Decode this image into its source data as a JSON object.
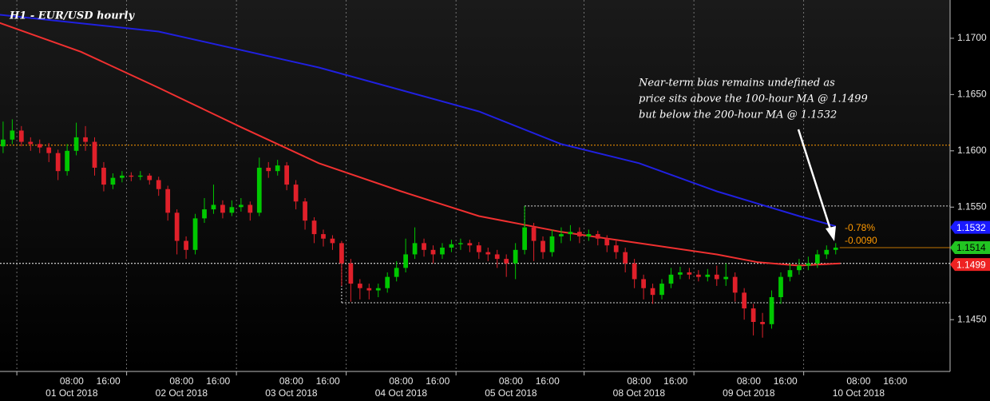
{
  "chart_data": {
    "type": "candlestick",
    "title": "H1 - EUR/USD hourly",
    "up_color": "#00c800",
    "down_color": "#e0202a",
    "x": [
      -7,
      -5,
      -3,
      -1,
      1,
      3,
      5,
      7,
      9,
      11,
      13,
      15,
      17,
      19,
      21,
      23,
      25,
      27,
      29,
      31,
      33,
      35,
      37,
      39,
      41,
      43,
      45,
      47,
      49,
      51,
      53,
      55,
      57,
      59,
      61,
      63,
      65,
      67,
      69,
      71,
      73,
      75,
      77,
      79,
      81,
      83,
      85,
      87,
      89,
      91,
      93,
      95,
      97,
      99,
      101,
      103,
      105,
      107,
      109,
      111,
      113,
      115,
      117,
      119,
      121,
      123,
      125,
      127,
      129,
      131,
      133,
      135,
      137,
      139,
      141,
      143,
      145,
      147,
      149,
      151,
      153,
      155,
      157,
      159,
      161,
      163,
      165,
      167,
      169,
      171,
      173,
      175
    ],
    "open": [
      1.1604,
      1.161,
      1.1618,
      1.1608,
      1.1606,
      1.1603,
      1.1598,
      1.1582,
      1.16,
      1.1612,
      1.1608,
      1.1585,
      1.157,
      1.1576,
      1.1578,
      1.1577,
      1.1578,
      1.1574,
      1.1566,
      1.1545,
      1.152,
      1.1512,
      1.154,
      1.1548,
      1.1552,
      1.1545,
      1.155,
      1.1552,
      1.1545,
      1.1585,
      1.1582,
      1.1587,
      1.157,
      1.1555,
      1.1538,
      1.1526,
      1.1522,
      1.1518,
      1.15,
      1.1482,
      1.1478,
      1.1476,
      1.1478,
      1.1488,
      1.1496,
      1.1508,
      1.1518,
      1.1512,
      1.1508,
      1.1514,
      1.1517,
      1.1518,
      1.1516,
      1.151,
      1.1508,
      1.1504,
      1.15,
      1.1512,
      1.1532,
      1.152,
      1.151,
      1.1524,
      1.1526,
      1.1528,
      1.1524,
      1.1526,
      1.1522,
      1.1516,
      1.151,
      1.15,
      1.1486,
      1.1478,
      1.1472,
      1.1482,
      1.149,
      1.1492,
      1.149,
      1.1488,
      1.149,
      1.1486,
      1.1488,
      1.1474,
      1.146,
      1.1448,
      1.1446,
      1.147,
      1.1488,
      1.1494,
      1.1498,
      1.15,
      1.1508,
      1.1512
    ],
    "high": [
      1.1626,
      1.1628,
      1.1622,
      1.1612,
      1.161,
      1.1607,
      1.1601,
      1.1606,
      1.1625,
      1.1622,
      1.1612,
      1.159,
      1.158,
      1.1582,
      1.1581,
      1.1582,
      1.158,
      1.1577,
      1.1569,
      1.1548,
      1.1524,
      1.1544,
      1.1558,
      1.157,
      1.1556,
      1.1556,
      1.1558,
      1.1555,
      1.1594,
      1.159,
      1.1592,
      1.159,
      1.1574,
      1.1558,
      1.1541,
      1.153,
      1.1525,
      1.152,
      1.1504,
      1.1486,
      1.1482,
      1.1482,
      1.1492,
      1.1502,
      1.1522,
      1.1532,
      1.1522,
      1.1516,
      1.1518,
      1.1521,
      1.1522,
      1.1521,
      1.1519,
      1.1514,
      1.1512,
      1.1508,
      1.1518,
      1.1551,
      1.1536,
      1.1524,
      1.153,
      1.1532,
      1.1534,
      1.1532,
      1.153,
      1.1529,
      1.1525,
      1.152,
      1.1514,
      1.1504,
      1.149,
      1.1482,
      1.1486,
      1.1496,
      1.1497,
      1.1496,
      1.1494,
      1.1495,
      1.1498,
      1.15,
      1.1492,
      1.1478,
      1.1464,
      1.1456,
      1.1476,
      1.1492,
      1.15,
      1.1504,
      1.1506,
      1.1512,
      1.1516,
      1.1518
    ],
    "low": [
      1.1598,
      1.1606,
      1.1604,
      1.16,
      1.1598,
      1.159,
      1.1574,
      1.1578,
      1.1596,
      1.16,
      1.1578,
      1.1564,
      1.1566,
      1.1572,
      1.1573,
      1.1574,
      1.157,
      1.156,
      1.1538,
      1.1508,
      1.1504,
      1.1508,
      1.1536,
      1.1544,
      1.154,
      1.1542,
      1.1546,
      1.1538,
      1.1542,
      1.1576,
      1.1578,
      1.1565,
      1.1548,
      1.153,
      1.1518,
      1.1515,
      1.1512,
      1.148,
      1.1466,
      1.1468,
      1.1468,
      1.147,
      1.1474,
      1.1484,
      1.1492,
      1.1504,
      1.1506,
      1.15,
      1.1504,
      1.151,
      1.1512,
      1.151,
      1.1504,
      1.1502,
      1.1496,
      1.1488,
      1.1486,
      1.1508,
      1.1502,
      1.1504,
      1.1506,
      1.1518,
      1.152,
      1.1518,
      1.152,
      1.1516,
      1.151,
      1.1504,
      1.1492,
      1.1478,
      1.1468,
      1.1464,
      1.1468,
      1.1478,
      1.1486,
      1.1486,
      1.1484,
      1.1484,
      1.148,
      1.148,
      1.1466,
      1.145,
      1.1436,
      1.1434,
      1.1442,
      1.1464,
      1.1484,
      1.149,
      1.1494,
      1.1496,
      1.1504,
      1.1508
    ],
    "close": [
      1.161,
      1.1618,
      1.1608,
      1.1606,
      1.1603,
      1.1598,
      1.1582,
      1.16,
      1.1612,
      1.1608,
      1.1585,
      1.157,
      1.1576,
      1.1578,
      1.1577,
      1.1578,
      1.1574,
      1.1566,
      1.1545,
      1.152,
      1.1512,
      1.154,
      1.1548,
      1.1552,
      1.1545,
      1.155,
      1.1552,
      1.1545,
      1.1585,
      1.1582,
      1.1587,
      1.157,
      1.1555,
      1.1538,
      1.1526,
      1.1522,
      1.1518,
      1.15,
      1.1482,
      1.1478,
      1.1476,
      1.1478,
      1.1488,
      1.1496,
      1.1508,
      1.1518,
      1.1512,
      1.1508,
      1.1514,
      1.1517,
      1.1518,
      1.1516,
      1.151,
      1.1508,
      1.1504,
      1.15,
      1.1512,
      1.1532,
      1.152,
      1.151,
      1.1524,
      1.1526,
      1.1528,
      1.1524,
      1.1526,
      1.1522,
      1.1516,
      1.151,
      1.15,
      1.1486,
      1.1478,
      1.1472,
      1.1482,
      1.149,
      1.1492,
      1.149,
      1.1488,
      1.149,
      1.1486,
      1.1488,
      1.1474,
      1.146,
      1.1448,
      1.1446,
      1.147,
      1.1488,
      1.1494,
      1.1498,
      1.15,
      1.1508,
      1.1512,
      1.1514
    ],
    "overlays": [
      {
        "color": "#2020e0",
        "x": [
          -8,
          27,
          62,
          97,
          115,
          132,
          149,
          167,
          175
        ],
        "values": [
          1.1721,
          1.1706,
          1.1674,
          1.1635,
          1.1606,
          1.1589,
          1.1564,
          1.1542,
          1.1533
        ]
      },
      {
        "color": "#f03030",
        "x": [
          -8,
          10,
          27,
          45,
          62,
          80,
          97,
          115,
          132,
          149,
          158,
          167,
          176
        ],
        "values": [
          1.1714,
          1.1688,
          1.1656,
          1.1621,
          1.1589,
          1.1564,
          1.1542,
          1.1528,
          1.1518,
          1.1508,
          1.1501,
          1.1498,
          1.15
        ]
      }
    ],
    "levels": [
      {
        "value": 1.1605,
        "color": "#ff9900"
      },
      {
        "value": 1.15,
        "color": "#ffffff"
      }
    ],
    "range_box": {
      "high": 1.1551,
      "low": 1.1465,
      "high_start": 107,
      "low_start": 67
    },
    "price_labels": [
      {
        "value": 1.1532,
        "color": "#1a1aff",
        "text_color": "#ffffff"
      },
      {
        "value": 1.1514,
        "color": "#22c422",
        "text_color": "#000000"
      },
      {
        "value": 1.1499,
        "color": "#ee2222",
        "text_color": "#ffffff"
      }
    ],
    "change_pct": "-0.78%",
    "change_abs": "-0.0090",
    "annotation": [
      "Near-term bias remains undefined as",
      "price sits above the 100-hour MA @ 1.1499",
      "but below the 200-hour MA @ 1.1532"
    ],
    "xlim": [
      -7.68,
      200
    ],
    "ylim": [
      1.1404,
      1.1734
    ],
    "yticks": [
      {
        "value": 1.145,
        "label": "1.1450"
      },
      {
        "value": 1.155,
        "label": "1.1550"
      },
      {
        "value": 1.16,
        "label": "1.1600"
      },
      {
        "value": 1.165,
        "label": "1.1650"
      },
      {
        "value": 1.17,
        "label": "1.1700"
      }
    ],
    "xticks": [
      {
        "value": 8,
        "label": "08:00"
      },
      {
        "value": 16,
        "label": "16:00"
      },
      {
        "value": 32,
        "label": "08:00"
      },
      {
        "value": 40,
        "label": "16:00"
      },
      {
        "value": 56,
        "label": "08:00"
      },
      {
        "value": 64,
        "label": "16:00"
      },
      {
        "value": 80,
        "label": "08:00"
      },
      {
        "value": 88,
        "label": "16:00"
      },
      {
        "value": 104,
        "label": "08:00"
      },
      {
        "value": 112,
        "label": "16:00"
      },
      {
        "value": 132,
        "label": "08:00"
      },
      {
        "value": 140,
        "label": "16:00"
      },
      {
        "value": 156,
        "label": "08:00"
      },
      {
        "value": 164,
        "label": "16:00"
      },
      {
        "value": 180,
        "label": "08:00"
      },
      {
        "value": 188,
        "label": "16:00"
      }
    ],
    "date_labels": [
      {
        "value": 8,
        "label": "01 Oct 2018"
      },
      {
        "value": 32,
        "label": "02 Oct 2018"
      },
      {
        "value": 56,
        "label": "03 Oct 2018"
      },
      {
        "value": 80,
        "label": "04 Oct 2018"
      },
      {
        "value": 104,
        "label": "05 Oct 2018"
      },
      {
        "value": 132,
        "label": "08 Oct 2018"
      },
      {
        "value": 156,
        "label": "09 Oct 2018"
      },
      {
        "value": 180,
        "label": "10 Oct 2018"
      }
    ],
    "session_breaks": [
      -4,
      20,
      44,
      68,
      92,
      120,
      144,
      168
    ]
  }
}
